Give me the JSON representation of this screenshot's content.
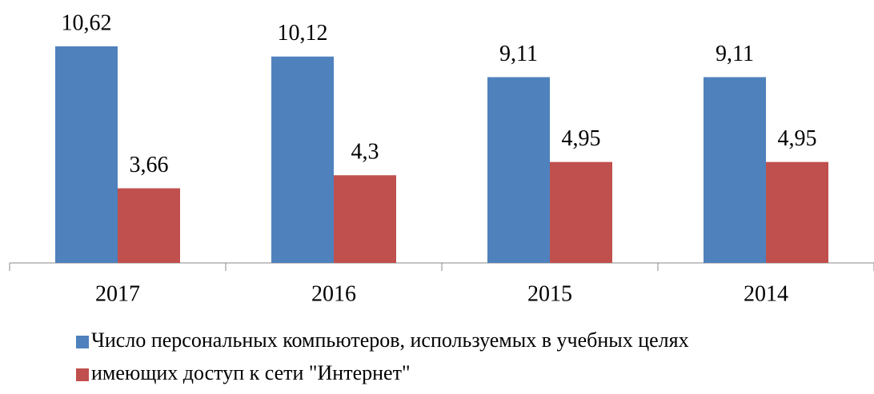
{
  "chart_data": {
    "type": "bar",
    "categories": [
      "2017",
      "2016",
      "2015",
      "2014"
    ],
    "series": [
      {
        "name": "Число персональных компьютеров, используемых в учебных целях",
        "color": "#4f81bd",
        "values": [
          10.62,
          10.12,
          9.11,
          9.11
        ],
        "value_labels": [
          "10,62",
          "10,12",
          "9,11",
          "9,11"
        ]
      },
      {
        "name": "имеющих доступ к сети \"Интернет\"",
        "color": "#c0504d",
        "values": [
          3.66,
          4.3,
          4.95,
          4.95
        ],
        "value_labels": [
          "3,66",
          "4,3",
          "4,95",
          "4,95"
        ]
      }
    ],
    "legend": "bottom"
  }
}
